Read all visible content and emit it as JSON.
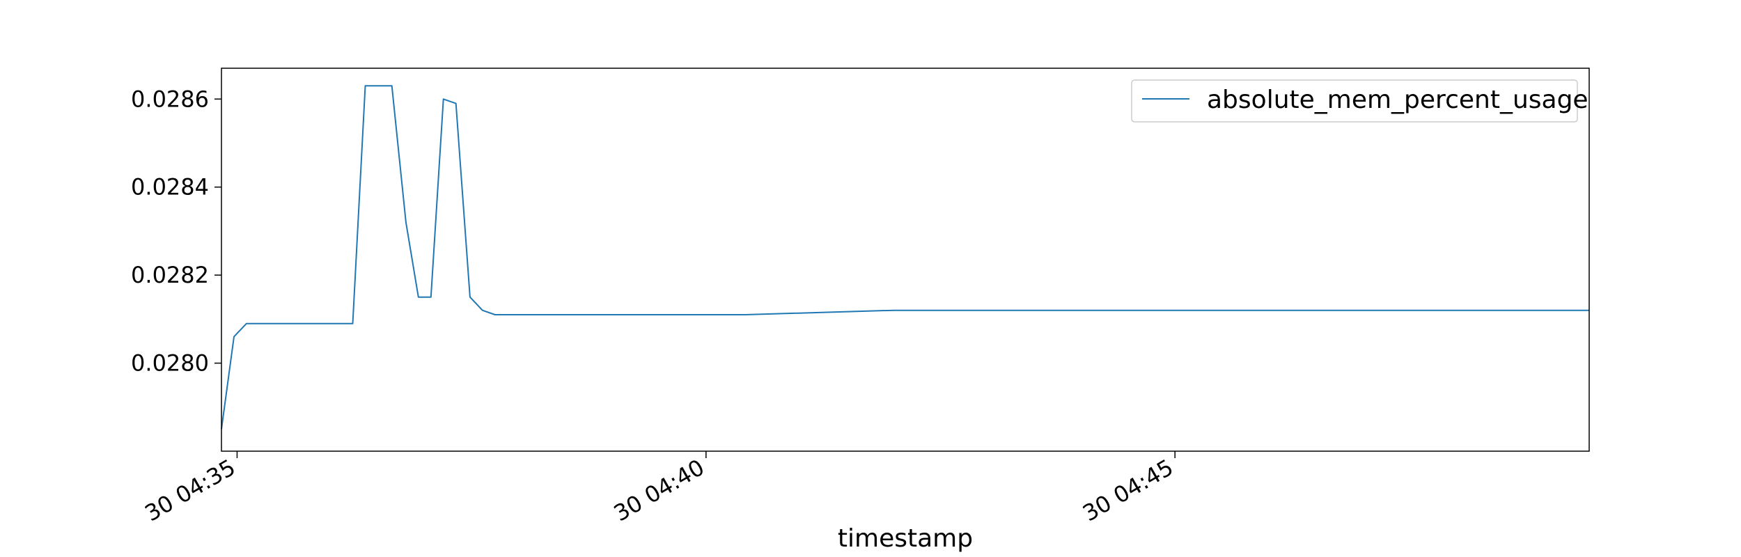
{
  "chart_data": {
    "type": "line",
    "xlabel": "timestamp",
    "ylabel": "",
    "x_axis": {
      "type": "time",
      "start": "2024-01-30T04:34:50",
      "end": "2024-01-30T04:49:25",
      "ticks": [
        {
          "t": "2024-01-30T04:35:00",
          "label": "30 04:35"
        },
        {
          "t": "2024-01-30T04:40:00",
          "label": "30 04:40"
        },
        {
          "t": "2024-01-30T04:45:00",
          "label": "30 04:45"
        }
      ]
    },
    "y_axis": {
      "ylim": [
        0.0278,
        0.02867
      ],
      "ticks": [
        {
          "v": 0.028,
          "label": "0.0280"
        },
        {
          "v": 0.0282,
          "label": "0.0282"
        },
        {
          "v": 0.0284,
          "label": "0.0284"
        },
        {
          "v": 0.0286,
          "label": "0.0286"
        }
      ]
    },
    "grid": false,
    "legend": {
      "position": "top-right"
    },
    "series": [
      {
        "name": "absolute_mem_percent_usage",
        "color": "#1f77b4",
        "points": [
          [
            "2024-01-30T04:34:50",
            0.02785
          ],
          [
            "2024-01-30T04:34:58",
            0.02806
          ],
          [
            "2024-01-30T04:35:06",
            0.02809
          ],
          [
            "2024-01-30T04:36:14",
            0.02809
          ],
          [
            "2024-01-30T04:36:22",
            0.02863
          ],
          [
            "2024-01-30T04:36:39",
            0.02863
          ],
          [
            "2024-01-30T04:36:48",
            0.02832
          ],
          [
            "2024-01-30T04:36:56",
            0.02815
          ],
          [
            "2024-01-30T04:37:04",
            0.02815
          ],
          [
            "2024-01-30T04:37:12",
            0.0286
          ],
          [
            "2024-01-30T04:37:20",
            0.02859
          ],
          [
            "2024-01-30T04:37:29",
            0.02815
          ],
          [
            "2024-01-30T04:37:37",
            0.02812
          ],
          [
            "2024-01-30T04:37:45",
            0.02811
          ],
          [
            "2024-01-30T04:39:00",
            0.02811
          ],
          [
            "2024-01-30T04:40:25",
            0.02811
          ],
          [
            "2024-01-30T04:42:00",
            0.02812
          ],
          [
            "2024-01-30T04:43:50",
            0.02812
          ],
          [
            "2024-01-30T04:45:00",
            0.02812
          ],
          [
            "2024-01-30T04:47:20",
            0.02812
          ],
          [
            "2024-01-30T04:49:25",
            0.02812
          ]
        ]
      }
    ]
  }
}
